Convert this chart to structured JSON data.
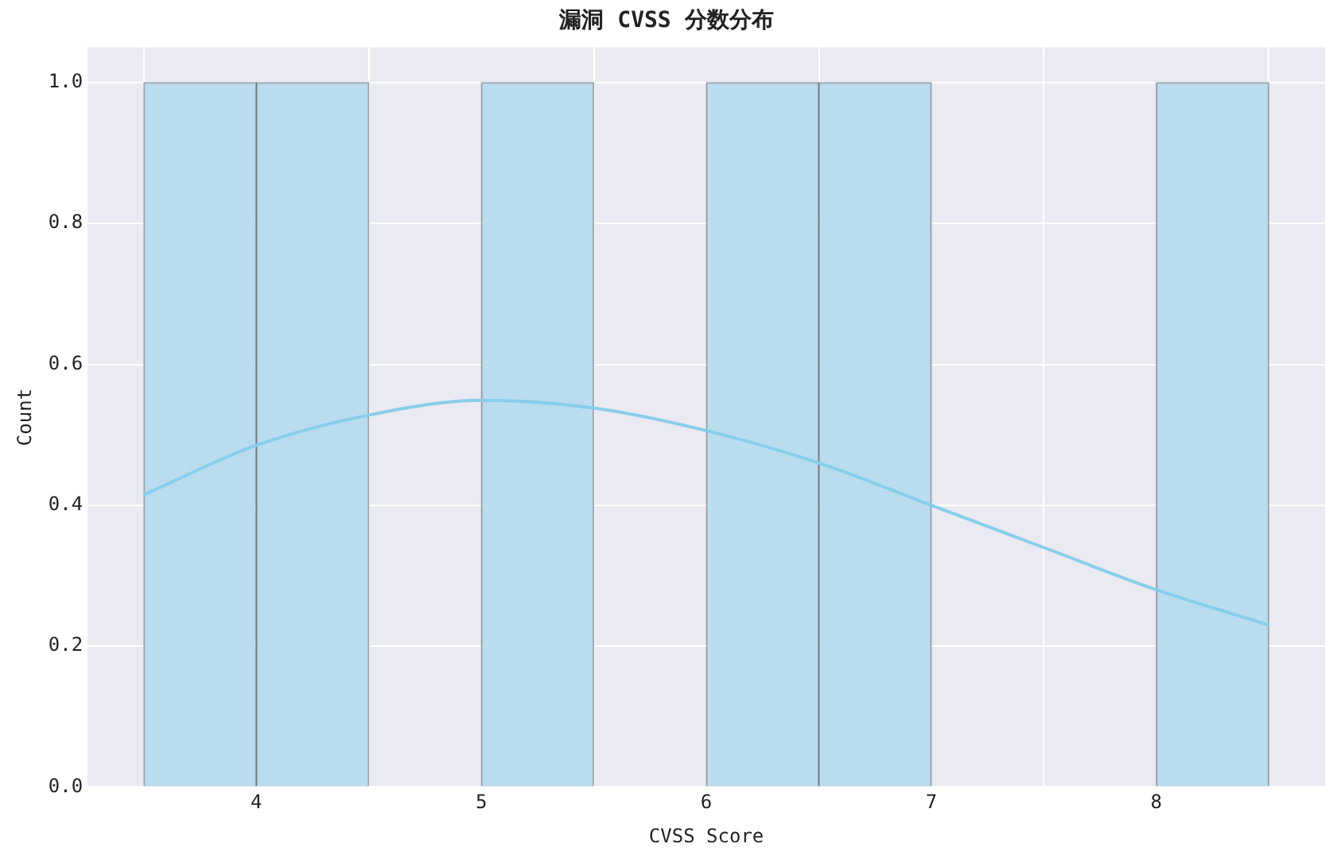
{
  "chart_data": {
    "type": "histogram",
    "title": "漏洞 CVSS 分数分布",
    "xlabel": "CVSS Score",
    "ylabel": "Count",
    "bins": [
      3.5,
      4,
      4.5,
      5,
      5.5,
      6,
      6.5,
      7,
      7.5,
      8,
      8.5
    ],
    "values": [
      1,
      1,
      0,
      1,
      0,
      1,
      1,
      0,
      0,
      1
    ],
    "color": "#b9dcee",
    "series": [
      {
        "type": "line",
        "color": "#87ceeb",
        "x": [
          3.5,
          4,
          4.5,
          5,
          5.5,
          6,
          6.5,
          7,
          7.5,
          8,
          8.5
        ],
        "values": [
          0.415,
          0.485,
          0.528,
          0.549,
          0.538,
          0.506,
          0.46,
          0.4,
          0.34,
          0.28,
          0.23
        ]
      }
    ],
    "xlim": [
      3.25,
      8.75
    ],
    "ylim": [
      0,
      1.05
    ],
    "xticks": [
      4,
      5,
      6,
      7,
      8
    ],
    "yticks": [
      {
        "value": 0,
        "label": "0.0"
      },
      {
        "value": 0.2,
        "label": "0.2"
      },
      {
        "value": 0.4,
        "label": "0.4"
      },
      {
        "value": 0.6,
        "label": "0.6"
      },
      {
        "value": 0.8,
        "label": "0.8"
      },
      {
        "value": 1,
        "label": "1.0"
      }
    ],
    "grid": true,
    "legend": false
  }
}
